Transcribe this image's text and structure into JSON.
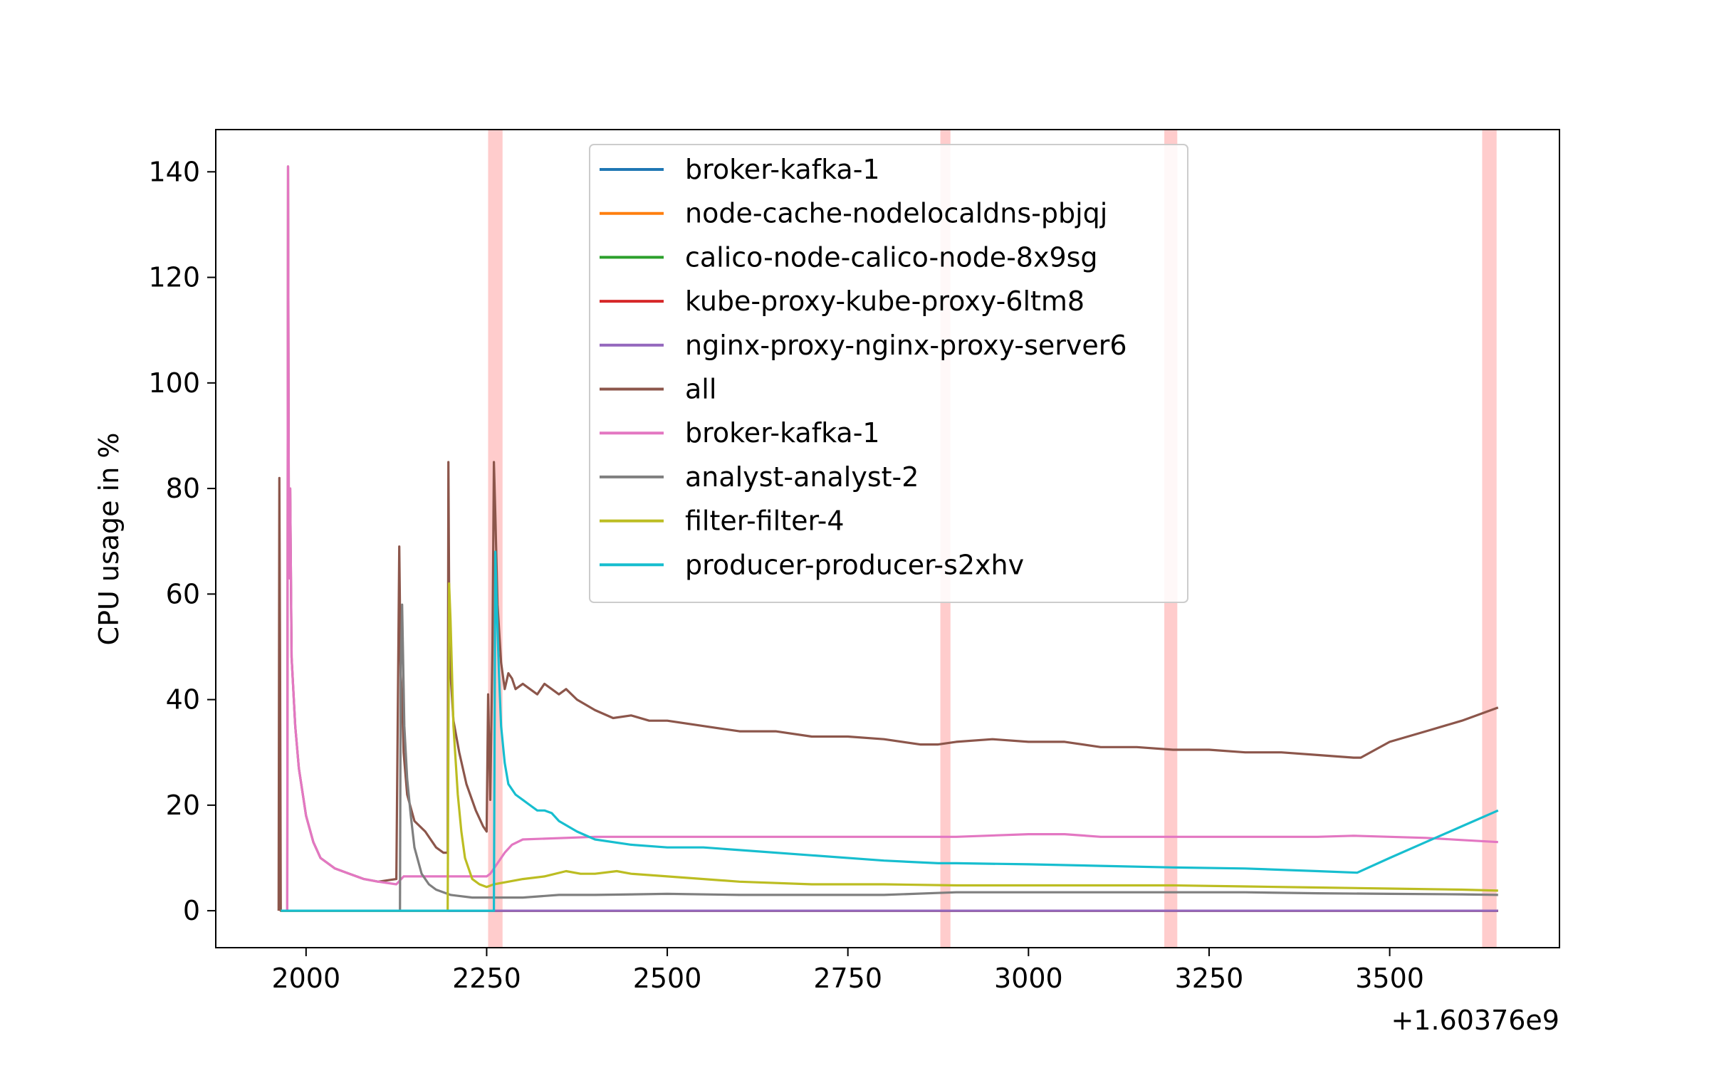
{
  "chart_data": {
    "type": "line",
    "title": "",
    "xlabel": "",
    "ylabel": "CPU usage in %",
    "x_offset_label": "+1.60376e9",
    "xlim": [
      1875,
      3735
    ],
    "ylim": [
      -7,
      148
    ],
    "x_ticks": [
      2000,
      2250,
      2500,
      2750,
      3000,
      3250,
      3500
    ],
    "x_tick_labels": [
      "2000",
      "2250",
      "2500",
      "2750",
      "3000",
      "3250",
      "3500"
    ],
    "y_ticks": [
      0,
      20,
      40,
      60,
      80,
      100,
      120,
      140
    ],
    "y_tick_labels": [
      "0",
      "20",
      "40",
      "60",
      "80",
      "100",
      "120",
      "140"
    ],
    "grid": false,
    "legend_position": "top-center",
    "highlight_bands": [
      [
        2252,
        2272
      ],
      [
        2878,
        2892
      ],
      [
        3188,
        3206
      ],
      [
        3628,
        3648
      ]
    ],
    "highlight_color": "#ffcccc",
    "series": [
      {
        "name": "broker-kafka-1",
        "color": "#1f77b4",
        "x": [
          1965,
          3650
        ],
        "y": [
          0,
          0
        ]
      },
      {
        "name": "node-cache-nodelocaldns-pbjqj",
        "color": "#ff7f0e",
        "x": [
          1965,
          3650
        ],
        "y": [
          0,
          0
        ]
      },
      {
        "name": "calico-node-calico-node-8x9sg",
        "color": "#2ca02c",
        "x": [
          1965,
          3650
        ],
        "y": [
          0,
          0
        ]
      },
      {
        "name": "kube-proxy-kube-proxy-6ltm8",
        "color": "#d62728",
        "x": [
          1965,
          3650
        ],
        "y": [
          0,
          0
        ]
      },
      {
        "name": "nginx-proxy-nginx-proxy-server6",
        "color": "#9467bd",
        "x": [
          1965,
          3650
        ],
        "y": [
          0,
          0
        ]
      },
      {
        "name": "all",
        "color": "#8c564b",
        "x": [
          1962,
          1963,
          1964,
          1965,
          1974,
          1975,
          1976,
          1977,
          1978,
          1980,
          1985,
          1990,
          2000,
          2010,
          2020,
          2040,
          2060,
          2080,
          2100,
          2125,
          2129,
          2131,
          2133,
          2135,
          2140,
          2150,
          2165,
          2180,
          2190,
          2196,
          2197,
          2198,
          2200,
          2204,
          2212,
          2222,
          2235,
          2245,
          2250,
          2252,
          2255,
          2258,
          2260,
          2262,
          2265,
          2270,
          2275,
          2280,
          2285,
          2290,
          2300,
          2310,
          2320,
          2330,
          2340,
          2350,
          2360,
          2375,
          2400,
          2425,
          2450,
          2475,
          2500,
          2550,
          2600,
          2650,
          2700,
          2750,
          2800,
          2850,
          2875,
          2900,
          2950,
          3000,
          3050,
          3100,
          3150,
          3200,
          3250,
          3300,
          3350,
          3400,
          3450,
          3460,
          3500,
          3550,
          3600,
          3650
        ],
        "y": [
          0,
          82,
          48,
          0,
          0,
          141,
          80,
          63,
          80,
          48,
          35,
          27,
          18,
          13,
          10,
          8,
          7,
          6,
          5.5,
          6,
          69,
          45,
          40,
          30,
          22,
          17,
          15,
          12,
          11,
          11,
          85,
          60,
          45,
          36,
          30,
          24,
          19,
          16,
          15,
          41,
          21,
          50,
          85,
          75,
          58,
          47,
          42,
          45,
          44,
          42,
          43,
          42,
          41,
          43,
          42,
          41,
          42,
          40,
          38,
          36.5,
          37,
          36,
          36,
          35,
          34,
          34,
          33,
          33,
          32.5,
          31.5,
          31.5,
          32,
          32.5,
          32,
          32,
          31,
          31,
          30.5,
          30.5,
          30,
          30,
          29.5,
          29,
          29,
          32,
          34,
          36,
          38.5
        ]
      },
      {
        "name": "broker-kafka-1",
        "color": "#e377c2",
        "x": [
          1965,
          1970,
          1974,
          1975,
          1976,
          1977,
          1978,
          1980,
          1985,
          1990,
          2000,
          2010,
          2020,
          2040,
          2060,
          2080,
          2100,
          2125,
          2135,
          2150,
          2200,
          2250,
          2255,
          2265,
          2275,
          2285,
          2300,
          2400,
          2500,
          2600,
          2700,
          2800,
          2900,
          3000,
          3050,
          3100,
          3200,
          3300,
          3400,
          3450,
          3500,
          3550,
          3600,
          3650
        ],
        "y": [
          0,
          0,
          0,
          141,
          80,
          63,
          80,
          48,
          35,
          27,
          18,
          13,
          10,
          8,
          7,
          6,
          5.5,
          5,
          6.5,
          6.5,
          6.5,
          6.5,
          7,
          9,
          11,
          12.5,
          13.5,
          14,
          14,
          14,
          14,
          14,
          14,
          14.5,
          14.5,
          14,
          14,
          14,
          14,
          14.2,
          14,
          13.8,
          13.4,
          13
        ]
      },
      {
        "name": "analyst-analyst-2",
        "color": "#7f7f7f",
        "x": [
          1965,
          2130,
          2131,
          2133,
          2136,
          2140,
          2145,
          2150,
          2160,
          2170,
          2180,
          2200,
          2230,
          2260,
          2300,
          2350,
          2400,
          2500,
          2600,
          2700,
          2800,
          2900,
          3000,
          3100,
          3200,
          3300,
          3400,
          3500,
          3600,
          3650
        ],
        "y": [
          0,
          0,
          45,
          58,
          35,
          25,
          18,
          12,
          7,
          5,
          4,
          3,
          2.5,
          2.5,
          2.5,
          3,
          3,
          3.2,
          3,
          3,
          3,
          3.5,
          3.5,
          3.5,
          3.5,
          3.5,
          3.3,
          3.2,
          3.1,
          3
        ]
      },
      {
        "name": "filter-filter-4",
        "color": "#bcbd22",
        "x": [
          1965,
          2196,
          2198,
          2200,
          2204,
          2210,
          2215,
          2220,
          2230,
          2240,
          2250,
          2260,
          2280,
          2300,
          2330,
          2360,
          2380,
          2400,
          2430,
          2450,
          2500,
          2600,
          2700,
          2800,
          2900,
          3000,
          3100,
          3200,
          3300,
          3400,
          3500,
          3600,
          3650
        ],
        "y": [
          0,
          0,
          62,
          55,
          35,
          22,
          15,
          10,
          6,
          5,
          4.5,
          5,
          5.5,
          6,
          6.5,
          7.5,
          7,
          7,
          7.5,
          7,
          6.5,
          5.5,
          5,
          5,
          4.8,
          4.8,
          4.8,
          4.8,
          4.6,
          4.4,
          4.2,
          4,
          3.8
        ]
      },
      {
        "name": "producer-producer-s2xhv",
        "color": "#17becf",
        "x": [
          1965,
          2260,
          2262,
          2264,
          2267,
          2270,
          2275,
          2280,
          2290,
          2300,
          2310,
          2320,
          2330,
          2340,
          2350,
          2375,
          2400,
          2450,
          2500,
          2550,
          2600,
          2700,
          2800,
          2875,
          2900,
          3000,
          3100,
          3200,
          3300,
          3400,
          3455,
          3500,
          3550,
          3600,
          3650
        ],
        "y": [
          0,
          0,
          68,
          58,
          45,
          35,
          28,
          24,
          22,
          21,
          20,
          19,
          19,
          18.5,
          17,
          15,
          13.5,
          12.5,
          12,
          12,
          11.5,
          10.5,
          9.5,
          9,
          9,
          8.8,
          8.5,
          8.2,
          8,
          7.5,
          7.2,
          10,
          13,
          16,
          19
        ]
      }
    ]
  }
}
